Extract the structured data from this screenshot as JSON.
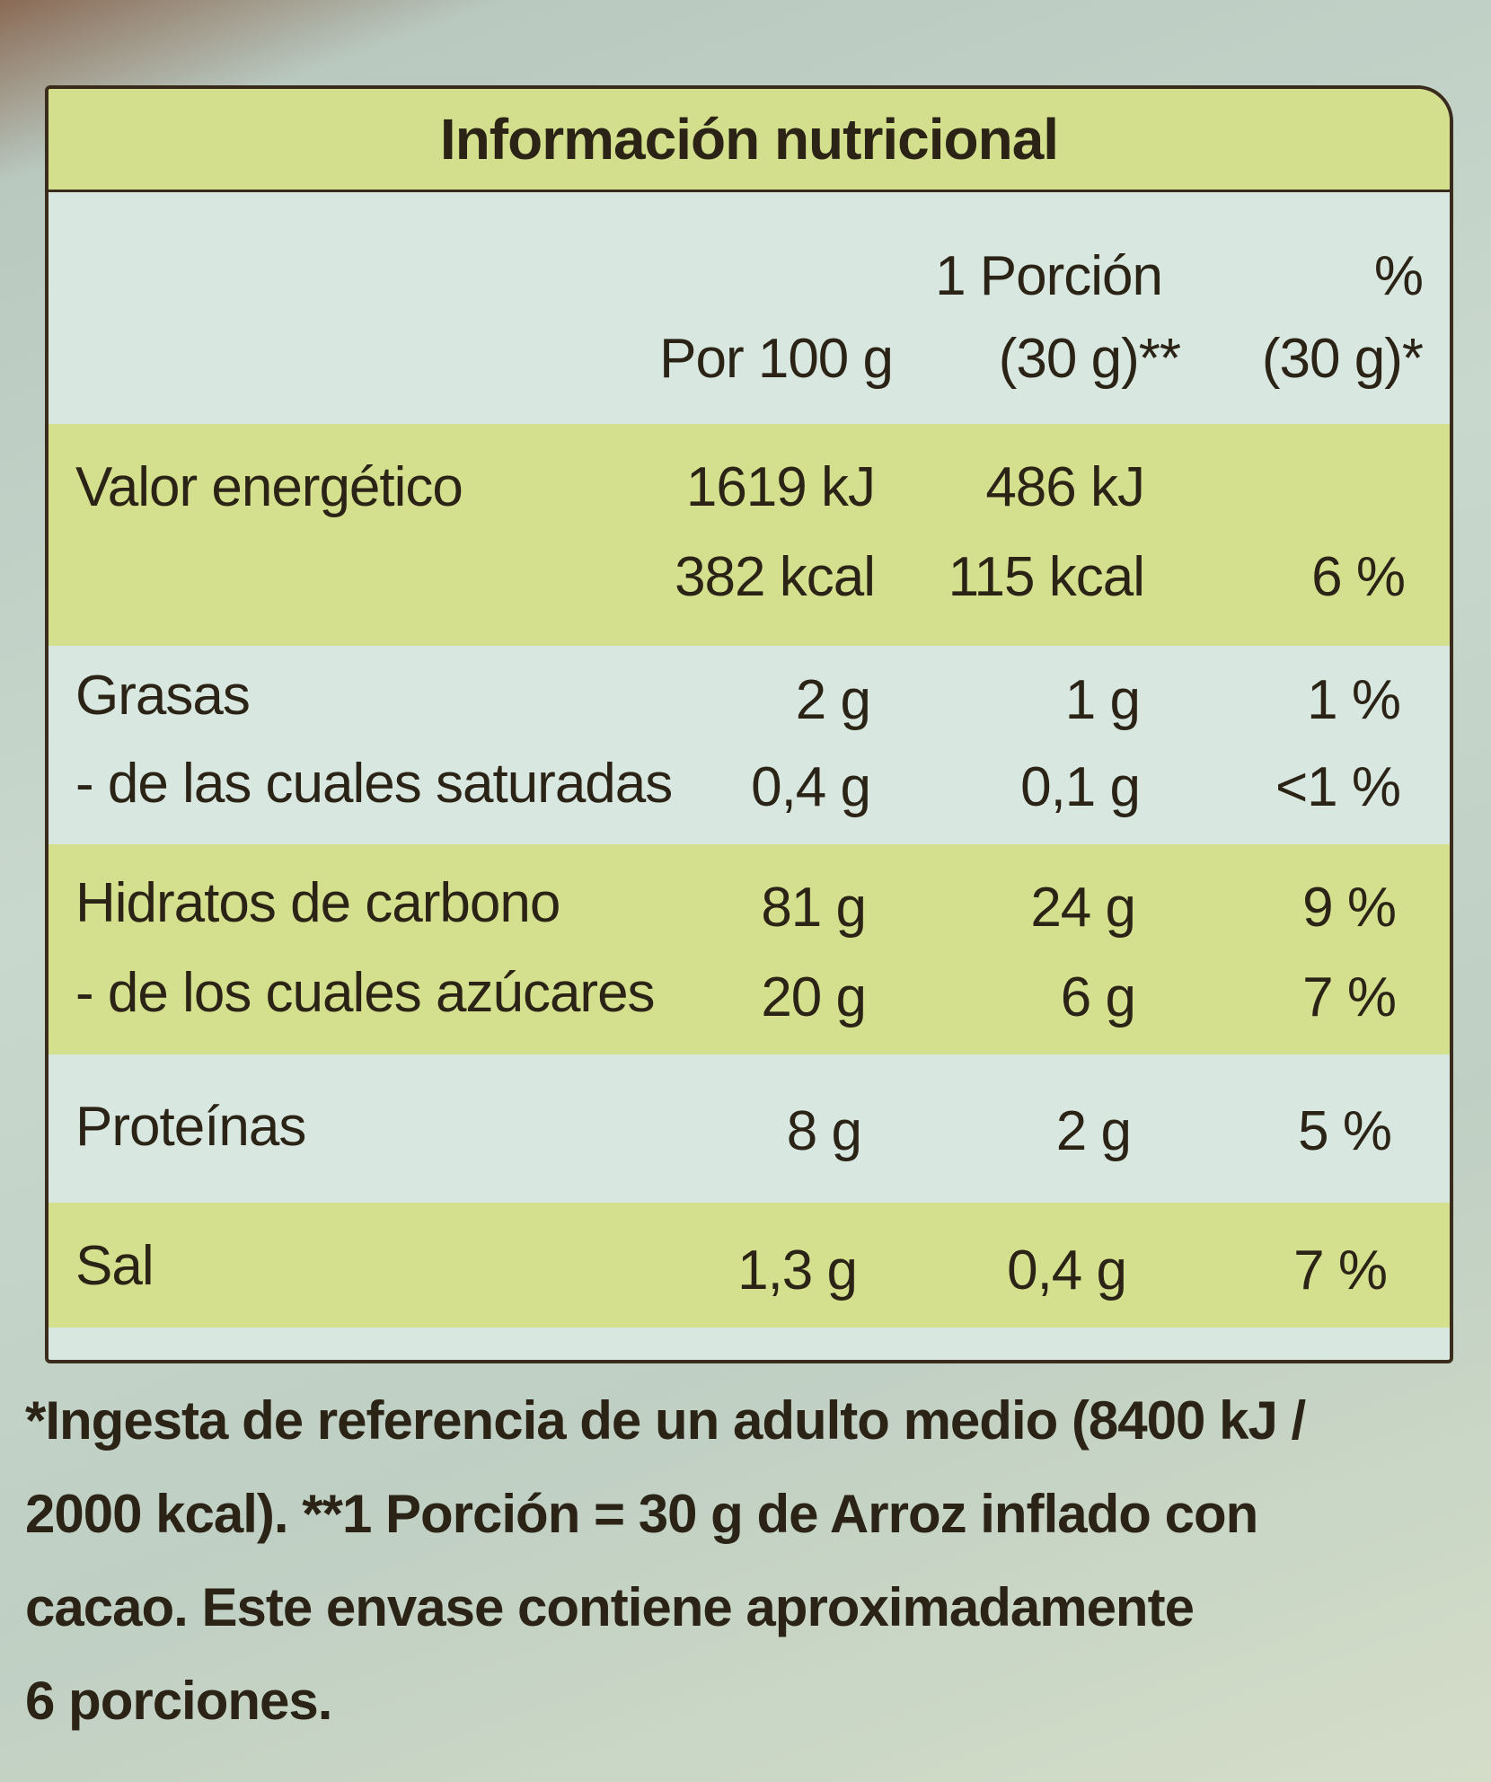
{
  "title": "Información nutricional",
  "header": {
    "col1": "Por 100 g",
    "col2_line1": "1 Porción",
    "col2_line2": "(30 g)**",
    "col3_line1": "%",
    "col3_line2": "(30 g)*"
  },
  "rows": [
    {
      "label": "Valor energético",
      "per100": "1619 kJ",
      "portion": "486 kJ",
      "pct": "",
      "per100_b": "382 kcal",
      "portion_b": "115 kcal",
      "pct_b": "6 %"
    },
    {
      "label": "Grasas",
      "per100": "2 g",
      "portion": "1 g",
      "pct": "1 %",
      "label_b": "- de las cuales saturadas",
      "per100_b": "0,4 g",
      "portion_b": "0,1 g",
      "pct_b": "<1 %"
    },
    {
      "label": "Hidratos de carbono",
      "per100": "81 g",
      "portion": "24 g",
      "pct": "9 %",
      "label_b": "- de los cuales azúcares",
      "per100_b": "20 g",
      "portion_b": "6 g",
      "pct_b": "7 %"
    },
    {
      "label": "Proteínas",
      "per100": "8 g",
      "portion": "2 g",
      "pct": "5 %"
    },
    {
      "label": "Sal",
      "per100": "1,3 g",
      "portion": "0,4 g",
      "pct": "7 %"
    }
  ],
  "footnote": [
    "*Ingesta de referencia de un adulto medio (8400 kJ /",
    "2000 kcal). **1 Porción = 30 g de Arroz inflado con",
    "cacao. Este envase contiene aproximadamente",
    "6 porciones."
  ],
  "colors": {
    "green_band": "#d5e08e",
    "light_band": "#d8e7e0",
    "border": "#3a2c1c"
  }
}
